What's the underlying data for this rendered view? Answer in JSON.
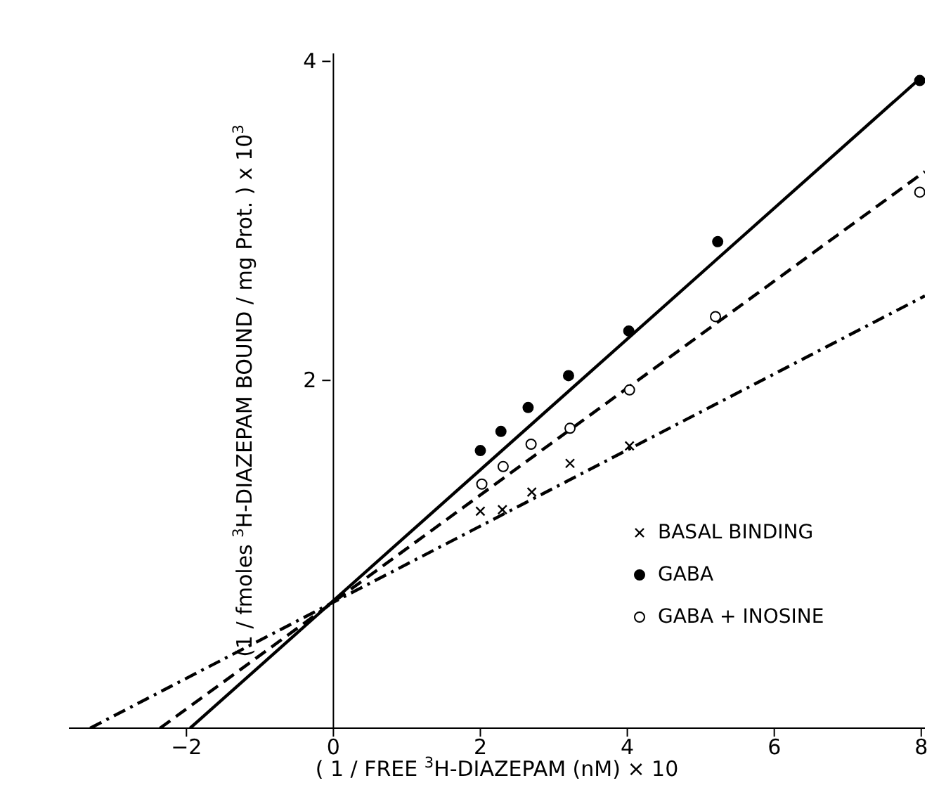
{
  "chart_data": {
    "type": "scatter",
    "xlabel": "( 1 / FREE $^{3}$H-DIAZEPAM  (nM)  × 10",
    "ylabel": "(1 / fmoles $^{3}$H-DIAZEPAM  BOUND / mg Prot. ) x 10$^{3}$",
    "xlim": [
      -3.6,
      8.05
    ],
    "xticks": [
      -2,
      0,
      2,
      4,
      6,
      8
    ],
    "ylim": [
      -0.18,
      4.05
    ],
    "yticks": [
      2,
      4
    ],
    "legend": "right",
    "series": [
      {
        "name": "BASAL  BINDING",
        "marker": "cross",
        "color": "#000000",
        "x": [
          2.0,
          2.3,
          2.7,
          3.22,
          4.03
        ],
        "values": [
          1.18,
          1.19,
          1.3,
          1.48,
          1.59
        ]
      },
      {
        "name": "GABA",
        "marker": "circle",
        "color": "#000000",
        "x": [
          2.0,
          2.28,
          2.65,
          3.2,
          4.02,
          5.23,
          7.98
        ],
        "values": [
          1.56,
          1.68,
          1.83,
          2.03,
          2.31,
          2.87,
          3.88
        ]
      },
      {
        "name": "GABA + INOSINE",
        "marker": "circle",
        "color": "#ffffff",
        "x": [
          2.02,
          2.31,
          2.69,
          3.22,
          4.03,
          5.2,
          7.98
        ],
        "values": [
          1.35,
          1.46,
          1.6,
          1.7,
          1.94,
          2.4,
          3.18
        ]
      },
      {
        "type": "line",
        "line_style": "dashdot",
        "marker": "none",
        "color": "#000000",
        "x": [
          -3.31,
          8.05
        ],
        "values": [
          -0.18,
          2.53
        ]
      },
      {
        "type": "line",
        "line_style": "solid",
        "marker": "none",
        "color": "#000000",
        "x": [
          -1.95,
          8.0
        ],
        "values": [
          -0.18,
          3.9
        ]
      },
      {
        "type": "line",
        "line_style": "dashed",
        "marker": "none",
        "color": "#000000",
        "x": [
          -2.36,
          8.05
        ],
        "values": [
          -0.18,
          3.31
        ]
      }
    ]
  }
}
